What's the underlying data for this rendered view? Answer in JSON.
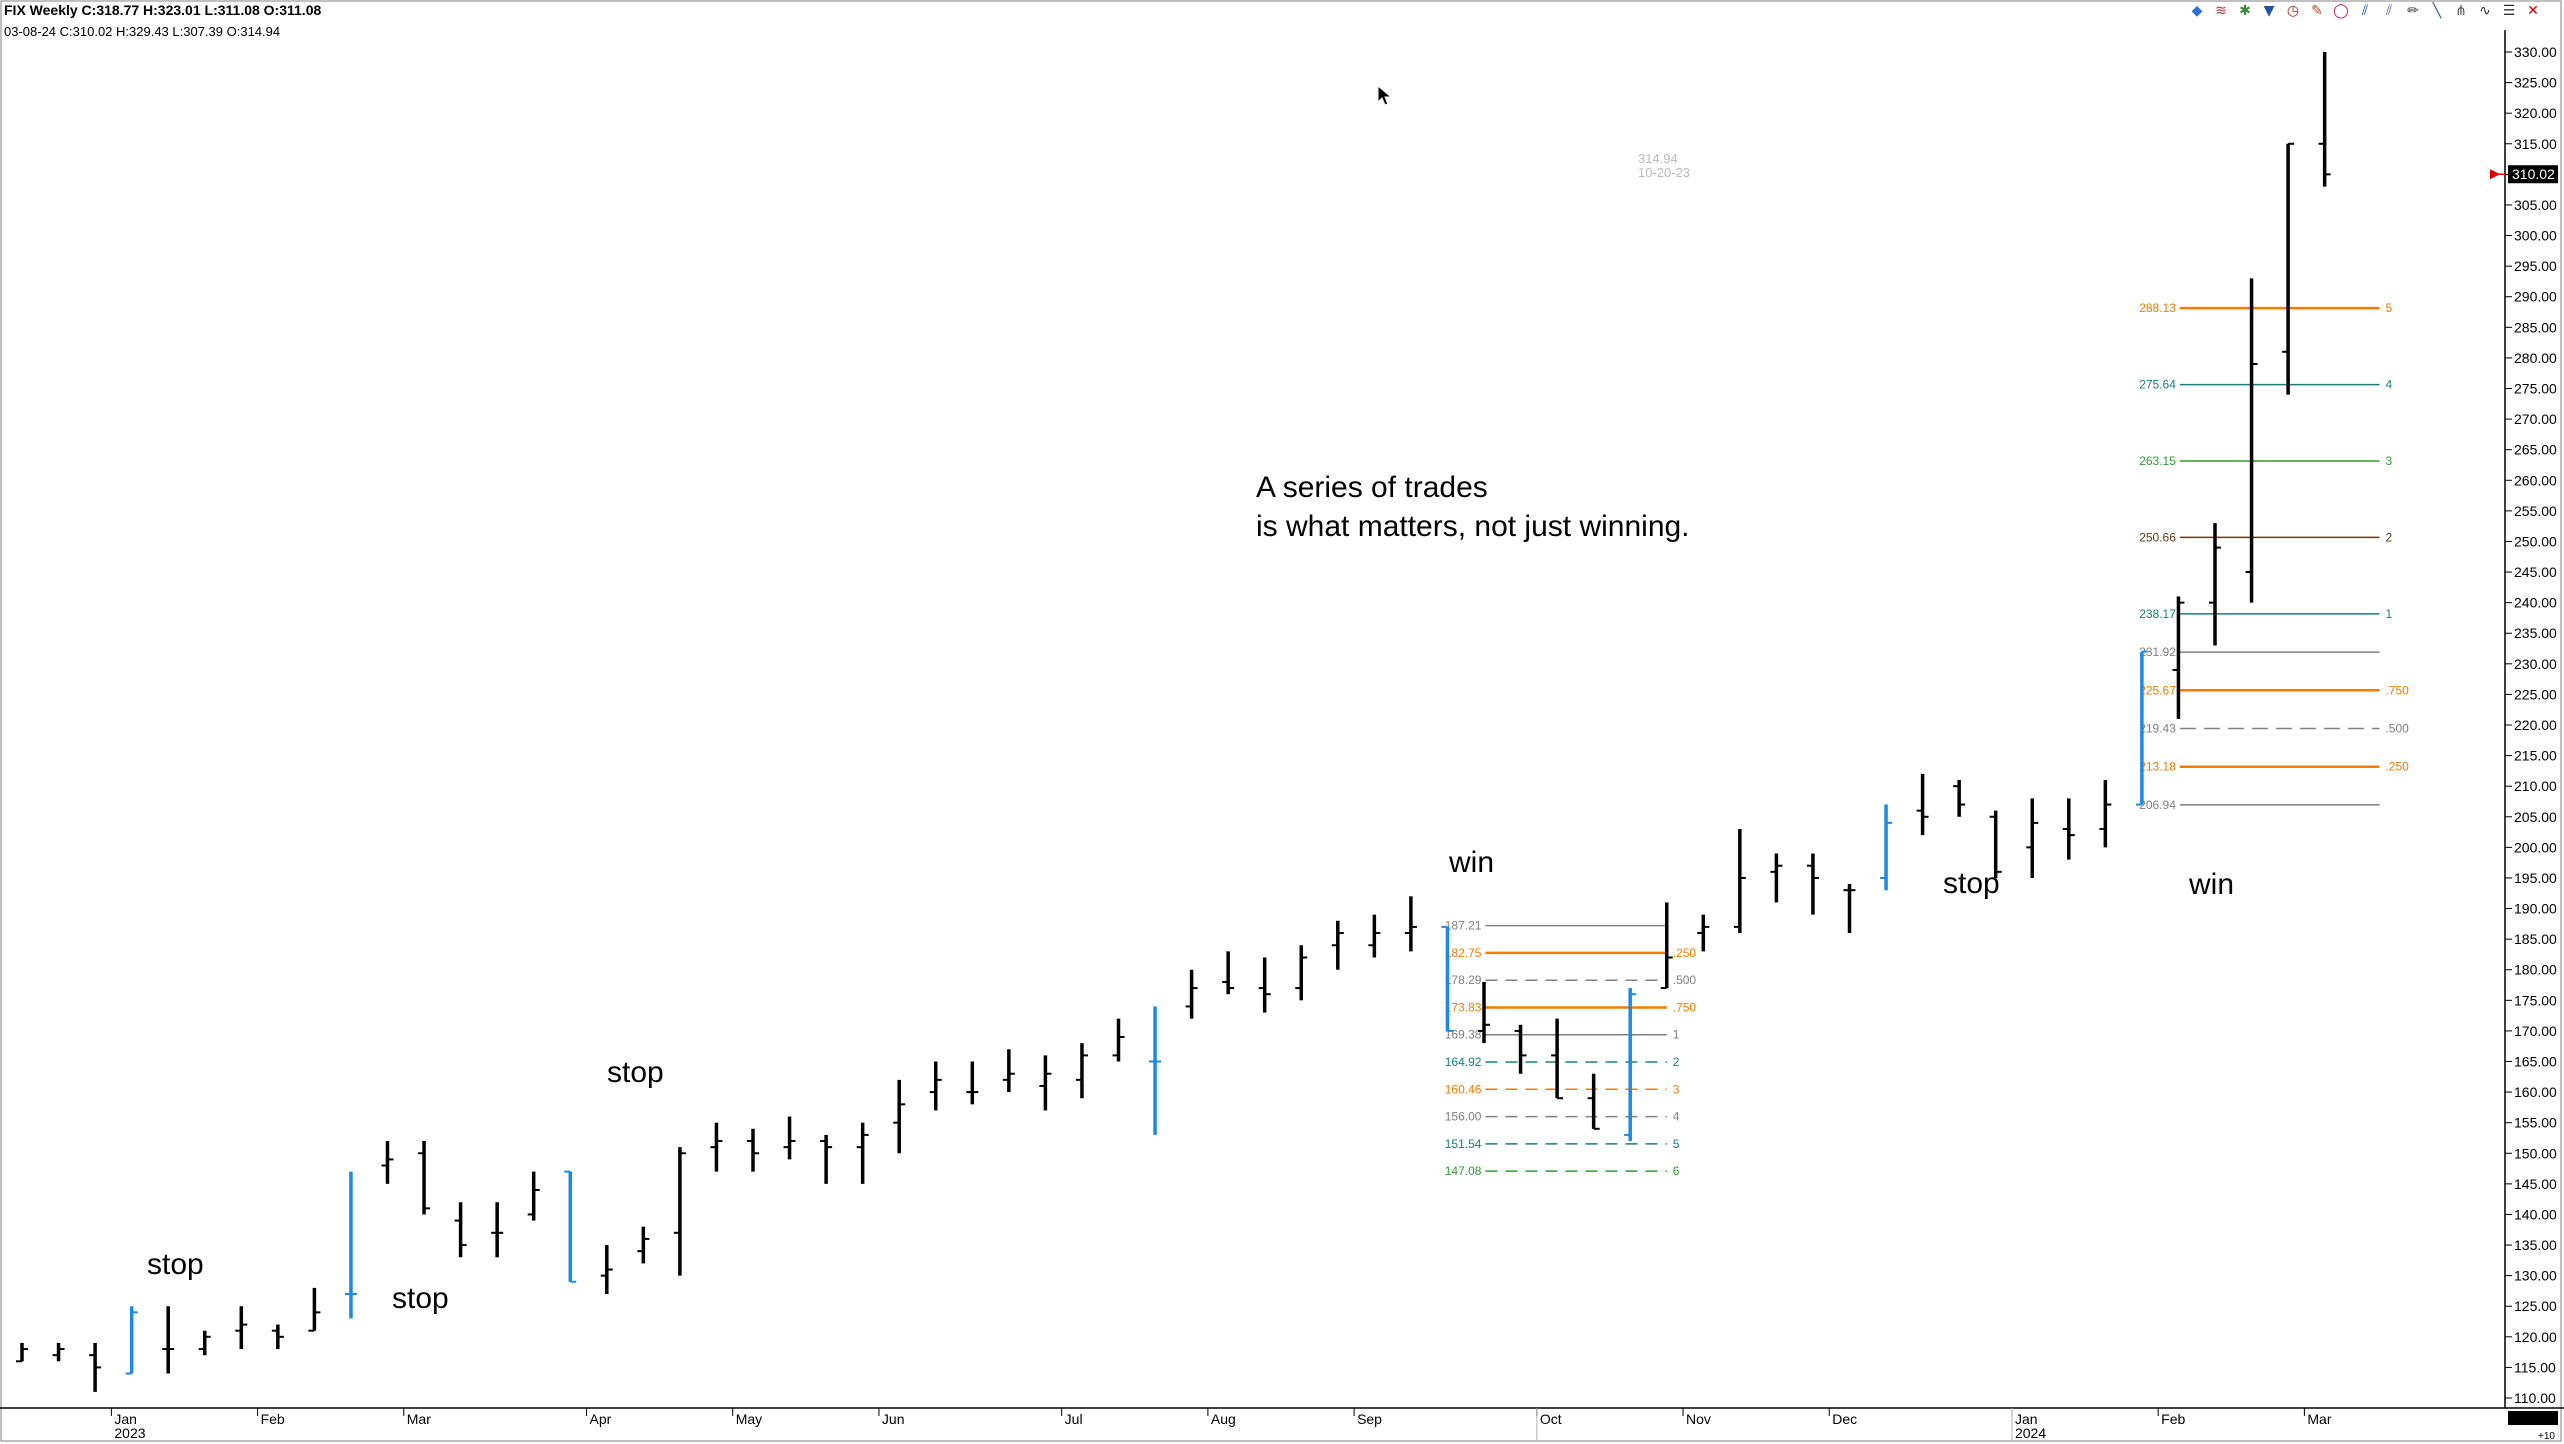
{
  "header": {
    "line1": "FIX Weekly C:318.77 H:323.01 L:311.08 O:311.08",
    "line2": "03-08-24 C:310.02 H:329.43 L:307.39 O:314.94"
  },
  "toolbar_icons": [
    {
      "name": "symbol-icon",
      "glyph": "◆",
      "color": "#2b6fd6"
    },
    {
      "name": "bars-icon",
      "glyph": "≋",
      "color": "#c03030"
    },
    {
      "name": "indicator-icon",
      "glyph": "✱",
      "color": "#3a8a3a"
    },
    {
      "name": "flag-icon",
      "glyph": "▼",
      "color": "#2050b0"
    },
    {
      "name": "clock-icon",
      "glyph": "◷",
      "color": "#c02020"
    },
    {
      "name": "palette-icon",
      "glyph": "✎",
      "color": "#b05020"
    },
    {
      "name": "ellipse-icon",
      "glyph": "◯",
      "color": "#c02060"
    },
    {
      "name": "channel-icon",
      "glyph": "⫽",
      "color": "#2050b0"
    },
    {
      "name": "parallel-icon",
      "glyph": "⫽",
      "color": "#6060c0"
    },
    {
      "name": "pencil-icon",
      "glyph": "✏",
      "color": "#404040"
    },
    {
      "name": "trendline-icon",
      "glyph": "╲",
      "color": "#2050b0"
    },
    {
      "name": "pitchfork-icon",
      "glyph": "⋔",
      "color": "#505050"
    },
    {
      "name": "wave-icon",
      "glyph": "∿",
      "color": "#303030"
    },
    {
      "name": "menu-icon",
      "glyph": "☰",
      "color": "#303030"
    },
    {
      "name": "close-icon",
      "glyph": "✕",
      "color": "#d00000"
    }
  ],
  "annotations": {
    "stop1": "stop",
    "stop2": "stop",
    "stop3": "stop",
    "win1": "win",
    "stop4": "stop",
    "win2": "win",
    "note_line1": "A series of trades",
    "note_line2": "is what matters, not just winning.",
    "hover_price": "314.94",
    "hover_date": "10-20-23"
  },
  "current_price_label": "310.02",
  "corner_label": "+10",
  "colors": {
    "black_bar": "#000000",
    "blue_bar": "#1e88e5",
    "orange": "#f57c00",
    "teal": "#1a7f7f",
    "green": "#2e9e2e",
    "brown": "#6b3a1e",
    "gray": "#808080",
    "marker_red": "#e00000"
  },
  "chart_data": {
    "type": "ohlc",
    "title": "",
    "xlabel": "",
    "ylabel": "",
    "ylim": [
      110,
      330
    ],
    "y_ticks": [
      "110.00",
      "115.00",
      "120.00",
      "125.00",
      "130.00",
      "135.00",
      "140.00",
      "145.00",
      "150.00",
      "155.00",
      "160.00",
      "165.00",
      "170.00",
      "175.00",
      "180.00",
      "185.00",
      "190.00",
      "195.00",
      "200.00",
      "205.00",
      "210.00",
      "215.00",
      "220.00",
      "225.00",
      "230.00",
      "235.00",
      "240.00",
      "245.00",
      "250.00",
      "255.00",
      "260.00",
      "265.00",
      "270.00",
      "275.00",
      "280.00",
      "285.00",
      "290.00",
      "295.00",
      "300.00",
      "305.00",
      "310.00",
      "315.00",
      "320.00",
      "325.00",
      "330.00"
    ],
    "x_labels": [
      {
        "text": "Jan",
        "bar": 2.5
      },
      {
        "text": "2023",
        "bar": 2.5,
        "row": 2
      },
      {
        "text": "Feb",
        "bar": 6.5
      },
      {
        "text": "Mar",
        "bar": 10.5
      },
      {
        "text": "Apr",
        "bar": 15.5
      },
      {
        "text": "May",
        "bar": 19.5
      },
      {
        "text": "Jun",
        "bar": 23.5
      },
      {
        "text": "Jul",
        "bar": 28.5
      },
      {
        "text": "Aug",
        "bar": 32.5
      },
      {
        "text": "Sep",
        "bar": 36.5
      },
      {
        "text": "Oct",
        "bar": 41.5
      },
      {
        "text": "Nov",
        "bar": 45.5
      },
      {
        "text": "Dec",
        "bar": 49.5
      },
      {
        "text": "Jan",
        "bar": 54.5
      },
      {
        "text": "2024",
        "bar": 54.5,
        "row": 2
      },
      {
        "text": "Feb",
        "bar": 58.5
      },
      {
        "text": "Mar",
        "bar": 62.5
      }
    ],
    "bars": [
      {
        "o": 116,
        "h": 119,
        "l": 116,
        "c": 118,
        "col": "black"
      },
      {
        "o": 117,
        "h": 119,
        "l": 116,
        "c": 118,
        "col": "black"
      },
      {
        "o": 117,
        "h": 119,
        "l": 111,
        "c": 115,
        "col": "black"
      },
      {
        "o": 114,
        "h": 125,
        "l": 114,
        "c": 124,
        "col": "blue"
      },
      {
        "o": 118,
        "h": 125,
        "l": 114,
        "c": 118,
        "col": "black"
      },
      {
        "o": 118,
        "h": 121,
        "l": 117,
        "c": 120,
        "col": "black"
      },
      {
        "o": 121,
        "h": 125,
        "l": 118,
        "c": 122,
        "col": "black"
      },
      {
        "o": 121,
        "h": 122,
        "l": 118,
        "c": 120,
        "col": "black"
      },
      {
        "o": 121,
        "h": 128,
        "l": 121,
        "c": 124,
        "col": "black"
      },
      {
        "o": 127,
        "h": 147,
        "l": 123,
        "c": 127,
        "col": "blue"
      },
      {
        "o": 148,
        "h": 152,
        "l": 145,
        "c": 149,
        "col": "black"
      },
      {
        "o": 150,
        "h": 152,
        "l": 140,
        "c": 141,
        "col": "black"
      },
      {
        "o": 139,
        "h": 142,
        "l": 133,
        "c": 135,
        "col": "black"
      },
      {
        "o": 137,
        "h": 142,
        "l": 133,
        "c": 137,
        "col": "black"
      },
      {
        "o": 140,
        "h": 147,
        "l": 139,
        "c": 144,
        "col": "black"
      },
      {
        "o": 147,
        "h": 147,
        "l": 129,
        "c": 129,
        "col": "blue"
      },
      {
        "o": 130,
        "h": 135,
        "l": 127,
        "c": 131,
        "col": "black"
      },
      {
        "o": 134,
        "h": 138,
        "l": 132,
        "c": 136,
        "col": "black"
      },
      {
        "o": 137,
        "h": 151,
        "l": 130,
        "c": 150,
        "col": "black"
      },
      {
        "o": 151,
        "h": 155,
        "l": 147,
        "c": 152,
        "col": "black"
      },
      {
        "o": 152,
        "h": 154,
        "l": 147,
        "c": 150,
        "col": "black"
      },
      {
        "o": 151,
        "h": 156,
        "l": 149,
        "c": 152,
        "col": "black"
      },
      {
        "o": 152,
        "h": 153,
        "l": 145,
        "c": 151,
        "col": "black"
      },
      {
        "o": 151,
        "h": 155,
        "l": 145,
        "c": 153,
        "col": "black"
      },
      {
        "o": 155,
        "h": 162,
        "l": 150,
        "c": 158,
        "col": "black"
      },
      {
        "o": 160,
        "h": 165,
        "l": 157,
        "c": 162,
        "col": "black"
      },
      {
        "o": 160,
        "h": 165,
        "l": 158,
        "c": 160,
        "col": "black"
      },
      {
        "o": 162,
        "h": 167,
        "l": 160,
        "c": 163,
        "col": "black"
      },
      {
        "o": 161,
        "h": 166,
        "l": 157,
        "c": 163,
        "col": "black"
      },
      {
        "o": 162,
        "h": 168,
        "l": 159,
        "c": 166,
        "col": "black"
      },
      {
        "o": 166,
        "h": 172,
        "l": 165,
        "c": 169,
        "col": "black"
      },
      {
        "o": 165,
        "h": 174,
        "l": 153,
        "c": 165,
        "col": "blue"
      },
      {
        "o": 174,
        "h": 180,
        "l": 172,
        "c": 177,
        "col": "black"
      },
      {
        "o": 178,
        "h": 183,
        "l": 176,
        "c": 177,
        "col": "black"
      },
      {
        "o": 177,
        "h": 182,
        "l": 173,
        "c": 176,
        "col": "black"
      },
      {
        "o": 177,
        "h": 184,
        "l": 175,
        "c": 182,
        "col": "black"
      },
      {
        "o": 184,
        "h": 188,
        "l": 180,
        "c": 186,
        "col": "black"
      },
      {
        "o": 184,
        "h": 189,
        "l": 182,
        "c": 186,
        "col": "black"
      },
      {
        "o": 186,
        "h": 192,
        "l": 183,
        "c": 187,
        "col": "black"
      },
      {
        "o": 187,
        "h": 187,
        "l": 170,
        "c": 170,
        "col": "blue"
      },
      {
        "o": 170,
        "h": 178,
        "l": 168,
        "c": 171,
        "col": "black"
      },
      {
        "o": 170,
        "h": 171,
        "l": 163,
        "c": 166,
        "col": "black"
      },
      {
        "o": 166,
        "h": 172,
        "l": 159,
        "c": 159,
        "col": "black"
      },
      {
        "o": 159,
        "h": 163,
        "l": 154,
        "c": 154,
        "col": "black"
      },
      {
        "o": 153,
        "h": 177,
        "l": 152,
        "c": 176,
        "col": "blue"
      },
      {
        "o": 177,
        "h": 191,
        "l": 177,
        "c": 182,
        "col": "black"
      },
      {
        "o": 186,
        "h": 189,
        "l": 183,
        "c": 187,
        "col": "black"
      },
      {
        "o": 187,
        "h": 203,
        "l": 186,
        "c": 195,
        "col": "black"
      },
      {
        "o": 196,
        "h": 199,
        "l": 191,
        "c": 197,
        "col": "black"
      },
      {
        "o": 197,
        "h": 199,
        "l": 189,
        "c": 195,
        "col": "black"
      },
      {
        "o": 193,
        "h": 194,
        "l": 186,
        "c": 193,
        "col": "black"
      },
      {
        "o": 195,
        "h": 207,
        "l": 193,
        "c": 204,
        "col": "blue"
      },
      {
        "o": 206,
        "h": 212,
        "l": 202,
        "c": 205,
        "col": "black"
      },
      {
        "o": 210,
        "h": 211,
        "l": 205,
        "c": 207,
        "col": "black"
      },
      {
        "o": 205,
        "h": 206,
        "l": 195,
        "c": 196,
        "col": "black"
      },
      {
        "o": 200,
        "h": 208,
        "l": 195,
        "c": 204,
        "col": "black"
      },
      {
        "o": 203,
        "h": 208,
        "l": 198,
        "c": 202,
        "col": "black"
      },
      {
        "o": 203,
        "h": 211,
        "l": 200,
        "c": 207,
        "col": "black"
      },
      {
        "o": 207,
        "h": 232,
        "l": 207,
        "c": 232,
        "col": "blue"
      },
      {
        "o": 229,
        "h": 241,
        "l": 221,
        "c": 240,
        "col": "black"
      },
      {
        "o": 240,
        "h": 253,
        "l": 233,
        "c": 249,
        "col": "black"
      },
      {
        "o": 245,
        "h": 293,
        "l": 240,
        "c": 279,
        "col": "black"
      },
      {
        "o": 281,
        "h": 315,
        "l": 274,
        "c": 315,
        "col": "black"
      },
      {
        "o": 315,
        "h": 330,
        "l": 308,
        "c": 310,
        "col": "black"
      }
    ],
    "fib_sets": [
      {
        "start_bar": 39,
        "end_bar": 45,
        "levels": [
          {
            "label": "187.21",
            "value": 187.21,
            "ratio": "",
            "style": "solid",
            "color": "gray"
          },
          {
            "label": "182.75",
            "value": 182.75,
            "ratio": ".250",
            "style": "solid",
            "color": "orange"
          },
          {
            "label": "178.29",
            "value": 178.29,
            "ratio": ".500",
            "style": "dashed",
            "color": "gray"
          },
          {
            "label": "173.83",
            "value": 173.83,
            "ratio": ".750",
            "style": "solid",
            "color": "orange"
          },
          {
            "label": "169.38",
            "value": 169.38,
            "ratio": "1",
            "style": "solid",
            "color": "gray"
          },
          {
            "label": "164.92",
            "value": 164.92,
            "ratio": "2",
            "style": "dashed",
            "color": "teal"
          },
          {
            "label": "160.46",
            "value": 160.46,
            "ratio": "3",
            "style": "dashed",
            "color": "orange"
          },
          {
            "label": "156.00",
            "value": 156.0,
            "ratio": "4",
            "style": "dashed",
            "color": "gray"
          },
          {
            "label": "151.54",
            "value": 151.54,
            "ratio": "5",
            "style": "dashed",
            "color": "teal"
          },
          {
            "label": "147.08",
            "value": 147.08,
            "ratio": "6",
            "style": "dashed",
            "color": "green"
          }
        ]
      },
      {
        "start_bar": 58,
        "end_bar": 64.5,
        "levels": [
          {
            "label": "288.13",
            "value": 288.13,
            "ratio": "5",
            "style": "solid",
            "color": "orange"
          },
          {
            "label": "275.64",
            "value": 275.64,
            "ratio": "4",
            "style": "solid",
            "color": "teal"
          },
          {
            "label": "263.15",
            "value": 263.15,
            "ratio": "3",
            "style": "solid",
            "color": "green"
          },
          {
            "label": "250.66",
            "value": 250.66,
            "ratio": "2",
            "style": "solid",
            "color": "brown"
          },
          {
            "label": "238.17",
            "value": 238.17,
            "ratio": "1",
            "style": "solid",
            "color": "teal"
          },
          {
            "label": "231.92",
            "value": 231.92,
            "ratio": "",
            "style": "solid",
            "color": "gray"
          },
          {
            "label": "225.67",
            "value": 225.67,
            "ratio": ".750",
            "style": "solid",
            "color": "orange"
          },
          {
            "label": "219.43",
            "value": 219.43,
            "ratio": ".500",
            "style": "dashed",
            "color": "gray"
          },
          {
            "label": "213.18",
            "value": 213.18,
            "ratio": ".250",
            "style": "solid",
            "color": "orange"
          },
          {
            "label": "206.94",
            "value": 206.94,
            "ratio": "",
            "style": "solid",
            "color": "gray"
          }
        ]
      }
    ]
  }
}
